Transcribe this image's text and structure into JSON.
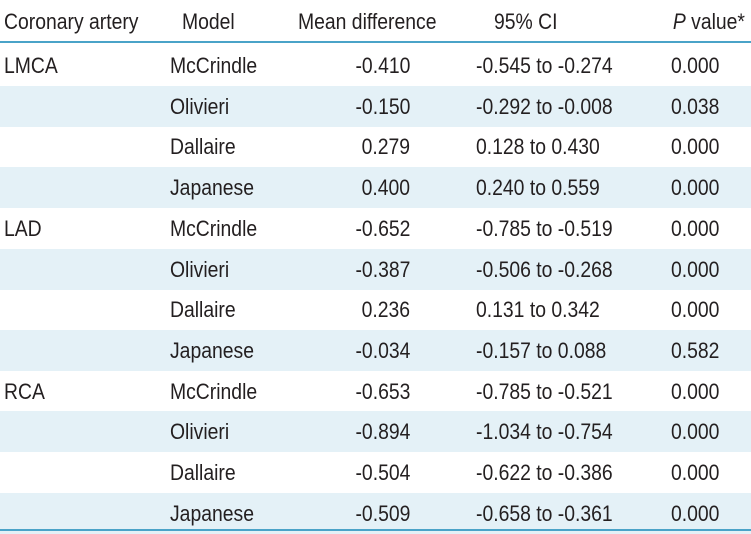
{
  "header": {
    "artery": "Coronary artery",
    "model": "Model",
    "mean_difference": "Mean difference",
    "ci": "95% CI",
    "p_italic": "P",
    "p_rest": " value*"
  },
  "rows": [
    {
      "artery": "LMCA",
      "model": "McCrindle",
      "mean": "-0.410",
      "ci": "-0.545 to -0.274",
      "p": "0.000"
    },
    {
      "artery": "",
      "model": "Olivieri",
      "mean": "-0.150",
      "ci": "-0.292 to -0.008",
      "p": "0.038"
    },
    {
      "artery": "",
      "model": "Dallaire",
      "mean": "0.279",
      "ci": "0.128 to 0.430",
      "p": "0.000"
    },
    {
      "artery": "",
      "model": "Japanese",
      "mean": "0.400",
      "ci": "0.240 to 0.559",
      "p": "0.000"
    },
    {
      "artery": "LAD",
      "model": "McCrindle",
      "mean": "-0.652",
      "ci": "-0.785 to -0.519",
      "p": "0.000"
    },
    {
      "artery": "",
      "model": "Olivieri",
      "mean": "-0.387",
      "ci": "-0.506 to -0.268",
      "p": "0.000"
    },
    {
      "artery": "",
      "model": "Dallaire",
      "mean": "0.236",
      "ci": "0.131 to 0.342",
      "p": "0.000"
    },
    {
      "artery": "",
      "model": "Japanese",
      "mean": "-0.034",
      "ci": "-0.157 to 0.088",
      "p": "0.582"
    },
    {
      "artery": "RCA",
      "model": "McCrindle",
      "mean": "-0.653",
      "ci": "-0.785 to -0.521",
      "p": "0.000"
    },
    {
      "artery": "",
      "model": "Olivieri",
      "mean": "-0.894",
      "ci": "-1.034 to -0.754",
      "p": "0.000"
    },
    {
      "artery": "",
      "model": "Dallaire",
      "mean": "-0.504",
      "ci": "-0.622 to -0.386",
      "p": "0.000"
    },
    {
      "artery": "",
      "model": "Japanese",
      "mean": "-0.509",
      "ci": "-0.658 to -0.361",
      "p": "0.000"
    }
  ],
  "colors": {
    "rule": "#4aa3c8",
    "shade": "#e4f1f7",
    "text": "#231f20"
  }
}
